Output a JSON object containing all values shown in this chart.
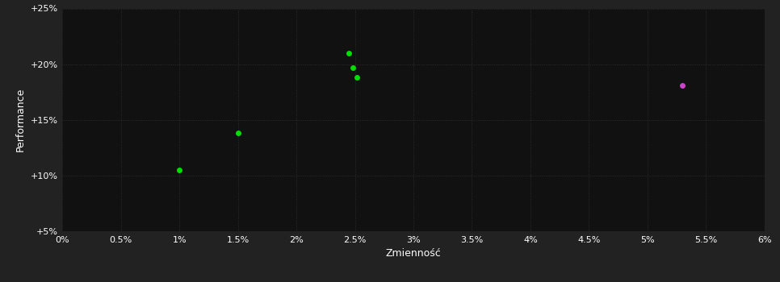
{
  "background_color": "#222222",
  "plot_bg_color": "#111111",
  "grid_color": "#333333",
  "text_color": "#ffffff",
  "xlabel": "Zmienność",
  "ylabel": "Performance",
  "xlim": [
    0.0,
    0.06
  ],
  "ylim": [
    0.05,
    0.25
  ],
  "xticks": [
    0.0,
    0.005,
    0.01,
    0.015,
    0.02,
    0.025,
    0.03,
    0.035,
    0.04,
    0.045,
    0.05,
    0.055,
    0.06
  ],
  "yticks": [
    0.05,
    0.1,
    0.15,
    0.2,
    0.25
  ],
  "green_points": [
    [
      0.01,
      0.105
    ],
    [
      0.015,
      0.138
    ],
    [
      0.0245,
      0.21
    ],
    [
      0.0248,
      0.197
    ],
    [
      0.0252,
      0.188
    ]
  ],
  "magenta_points": [
    [
      0.053,
      0.181
    ]
  ],
  "green_color": "#00dd00",
  "magenta_color": "#cc44cc",
  "marker_size": 5
}
